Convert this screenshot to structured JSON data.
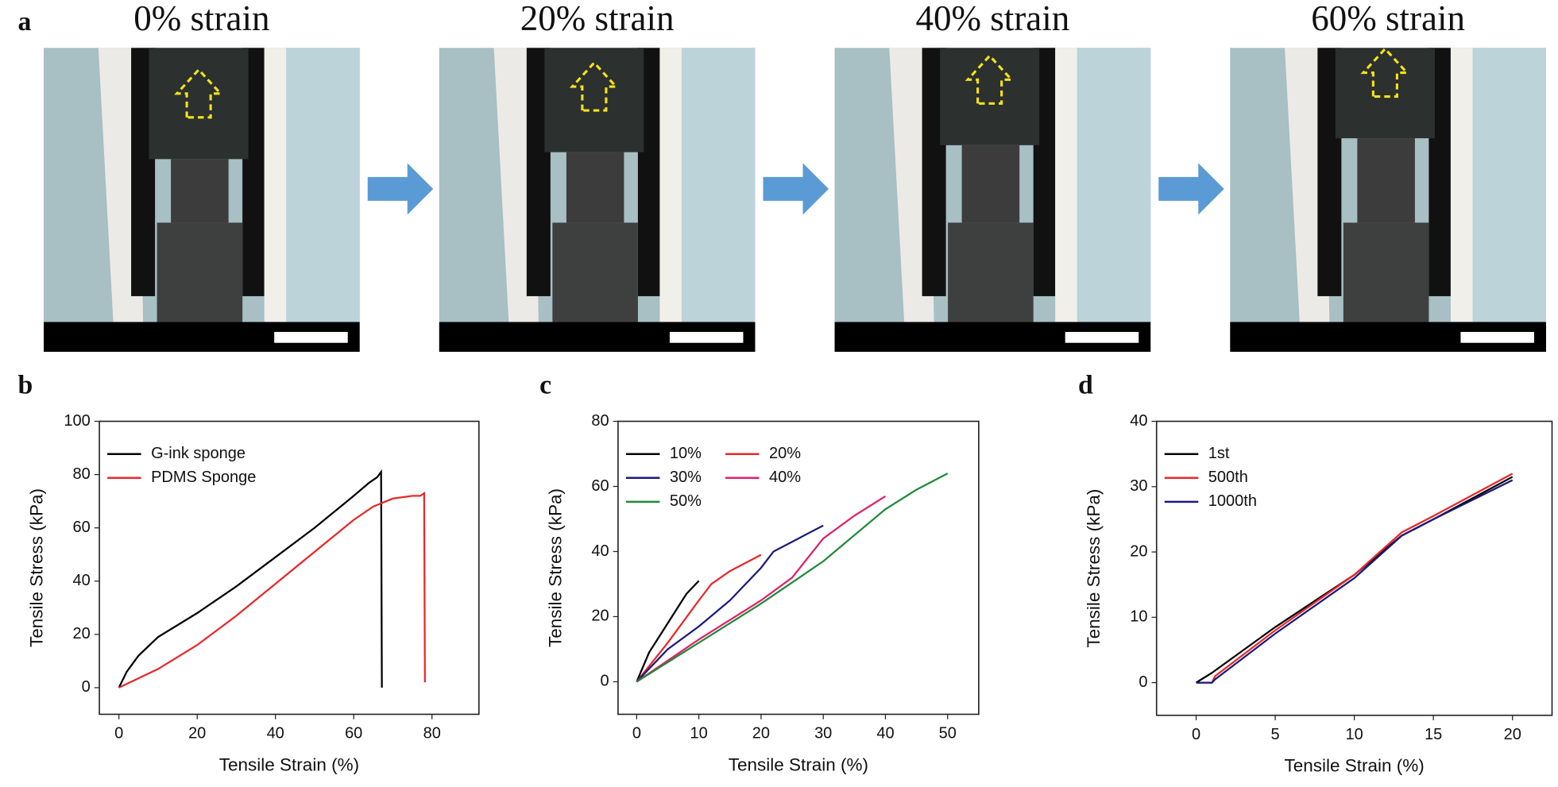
{
  "panel_a": {
    "label": "a",
    "photos": [
      {
        "caption": "0% strain"
      },
      {
        "caption": "20% strain"
      },
      {
        "caption": "40% strain"
      },
      {
        "caption": "60% strain"
      }
    ]
  },
  "chart_data": [
    {
      "type": "line",
      "panel_label": "b",
      "xlabel": "Tensile Strain (%)",
      "ylabel": "Tensile Stress (kPa)",
      "xlim": [
        -5,
        92
      ],
      "ylim": [
        -10,
        100
      ],
      "xticks": [
        0,
        20,
        40,
        60,
        80
      ],
      "yticks": [
        0,
        20,
        40,
        60,
        80,
        100
      ],
      "series": [
        {
          "name": "G-ink sponge",
          "color": "#000000",
          "x": [
            0,
            2,
            5,
            10,
            20,
            30,
            40,
            50,
            60,
            64,
            66,
            67,
            67.2
          ],
          "values": [
            0,
            6,
            12,
            19,
            28,
            38,
            49,
            60,
            72,
            77,
            79,
            81,
            0
          ]
        },
        {
          "name": "PDMS Sponge",
          "color": "#e8282a",
          "x": [
            0,
            10,
            20,
            30,
            40,
            50,
            60,
            65,
            70,
            75,
            77,
            78,
            78.2
          ],
          "values": [
            0,
            7,
            16,
            27,
            39,
            51,
            63,
            68,
            71,
            72,
            72,
            73,
            2
          ]
        }
      ]
    },
    {
      "type": "line",
      "panel_label": "c",
      "xlabel": "Tensile Strain (%)",
      "ylabel": "Tensile Stress (kPa)",
      "xlim": [
        -3,
        55
      ],
      "ylim": [
        -10,
        80
      ],
      "xticks": [
        0,
        10,
        20,
        30,
        40,
        50
      ],
      "yticks": [
        0,
        20,
        40,
        60,
        80
      ],
      "series": [
        {
          "name": "10%",
          "color": "#000000",
          "x": [
            0,
            2,
            4,
            6,
            8,
            10
          ],
          "values": [
            0,
            9,
            15,
            21,
            27,
            31
          ]
        },
        {
          "name": "20%",
          "color": "#e8282a",
          "x": [
            0,
            5,
            10,
            12,
            15,
            20
          ],
          "values": [
            0,
            12,
            25,
            30,
            34,
            39
          ]
        },
        {
          "name": "30%",
          "color": "#1a1a80",
          "x": [
            0,
            5,
            10,
            15,
            20,
            22,
            25,
            30
          ],
          "values": [
            0,
            10,
            17,
            25,
            35,
            40,
            43,
            48
          ]
        },
        {
          "name": "40%",
          "color": "#e0206a",
          "x": [
            0,
            10,
            20,
            25,
            30,
            35,
            40
          ],
          "values": [
            0,
            13,
            25,
            32,
            44,
            51,
            57
          ]
        },
        {
          "name": "50%",
          "color": "#1f8a3a",
          "x": [
            0,
            10,
            20,
            30,
            40,
            45,
            50
          ],
          "values": [
            0,
            12,
            24,
            37,
            53,
            59,
            64
          ]
        }
      ]
    },
    {
      "type": "line",
      "panel_label": "d",
      "xlabel": "Tensile Strain (%)",
      "ylabel": "Tensile Stress (kPa)",
      "xlim": [
        -2.5,
        22.5
      ],
      "ylim": [
        -5,
        40
      ],
      "xticks": [
        0,
        5,
        10,
        15,
        20
      ],
      "yticks": [
        0,
        10,
        20,
        30,
        40
      ],
      "series": [
        {
          "name": "1st",
          "color": "#000000",
          "x": [
            0,
            1,
            5,
            10,
            13,
            15,
            20
          ],
          "values": [
            0,
            1.5,
            8.5,
            16.5,
            22.5,
            25,
            31.5
          ]
        },
        {
          "name": "500th",
          "color": "#e8282a",
          "x": [
            0,
            1,
            1.2,
            5,
            10,
            13,
            15,
            20
          ],
          "values": [
            0,
            0,
            1,
            8,
            16.5,
            23,
            25.5,
            32
          ]
        },
        {
          "name": "1000th",
          "color": "#1a1a80",
          "x": [
            0,
            1,
            1.2,
            5,
            10,
            13,
            15,
            20
          ],
          "values": [
            0,
            0,
            0.5,
            7.5,
            16,
            22.5,
            25,
            31
          ]
        }
      ]
    }
  ]
}
